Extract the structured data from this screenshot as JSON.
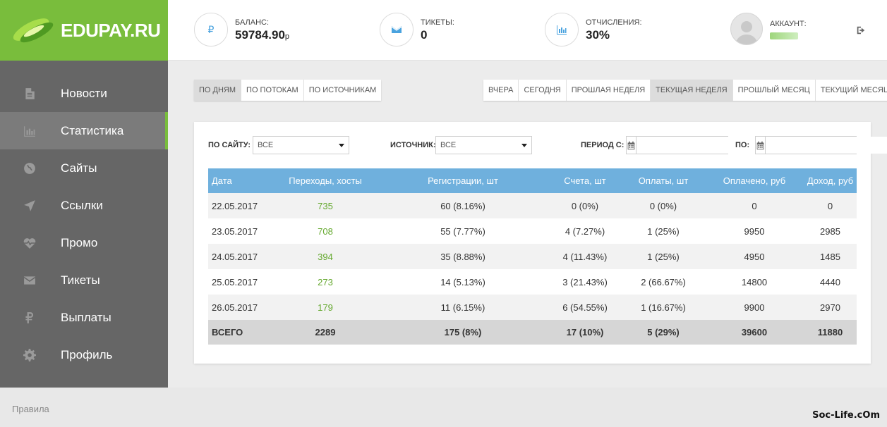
{
  "logo": {
    "text": "EDUPAY.RU"
  },
  "sidebar": {
    "items": [
      {
        "label": "Новости",
        "icon": "document-icon",
        "active": false
      },
      {
        "label": "Статистика",
        "icon": "bar-chart-icon",
        "active": true
      },
      {
        "label": "Сайты",
        "icon": "globe-icon",
        "active": false
      },
      {
        "label": "Ссылки",
        "icon": "location-arrow-icon",
        "active": false
      },
      {
        "label": "Промо",
        "icon": "heartbeat-icon",
        "active": false
      },
      {
        "label": "Тикеты",
        "icon": "envelope-icon",
        "active": false
      },
      {
        "label": "Выплаты",
        "icon": "ruble-icon",
        "active": false
      },
      {
        "label": "Профиль",
        "icon": "gear-icon",
        "active": false
      }
    ]
  },
  "header": {
    "balance": {
      "label": "БАЛАНС:",
      "value": "59784.90",
      "unit": "р"
    },
    "tickets": {
      "label": "ТИКЕТЫ:",
      "value": "0"
    },
    "deductions": {
      "label": "ОТЧИСЛЕНИЯ:",
      "value": "30%"
    },
    "account": {
      "label": "АККАУНТ:"
    }
  },
  "group_tabs": [
    {
      "label": "ПО ДНЯМ",
      "active": true
    },
    {
      "label": "ПО ПОТОКАМ",
      "active": false
    },
    {
      "label": "ПО ИСТОЧНИКАМ",
      "active": false
    }
  ],
  "period_tabs": [
    {
      "label": "ВЧЕРА",
      "active": false
    },
    {
      "label": "СЕГОДНЯ",
      "active": false
    },
    {
      "label": "ПРОШЛАЯ НЕДЕЛЯ",
      "active": false
    },
    {
      "label": "ТЕКУЩАЯ НЕДЕЛЯ",
      "active": true
    },
    {
      "label": "ПРОШЛЫЙ МЕСЯЦ",
      "active": false
    },
    {
      "label": "ТЕКУЩИЙ МЕСЯЦ",
      "active": false
    }
  ],
  "filters": {
    "site_label": "ПО САЙТУ:",
    "site_value": "ВСЕ",
    "source_label": "ИСТОЧНИК:",
    "source_value": "ВСЕ",
    "period_from_label": "ПЕРИОД С:",
    "period_to_label": "ПО:"
  },
  "table": {
    "columns": [
      "Дата",
      "Переходы, хосты",
      "Регистрации, шт",
      "Счета, шт",
      "Оплаты, шт",
      "Оплачено, руб",
      "Доход, руб"
    ],
    "rows": [
      [
        "22.05.2017",
        "735",
        "60 (8.16%)",
        "0 (0%)",
        "0 (0%)",
        "0",
        "0"
      ],
      [
        "23.05.2017",
        "708",
        "55 (7.77%)",
        "4 (7.27%)",
        "1 (25%)",
        "9950",
        "2985"
      ],
      [
        "24.05.2017",
        "394",
        "35 (8.88%)",
        "4 (11.43%)",
        "1 (25%)",
        "4950",
        "1485"
      ],
      [
        "25.05.2017",
        "273",
        "14 (5.13%)",
        "3 (21.43%)",
        "2 (66.67%)",
        "14800",
        "4440"
      ],
      [
        "26.05.2017",
        "179",
        "11 (6.15%)",
        "6 (54.55%)",
        "1 (16.67%)",
        "9900",
        "2970"
      ]
    ],
    "total": [
      "ВСЕГО",
      "2289",
      "175 (8%)",
      "17 (10%)",
      "5 (29%)",
      "39600",
      "11880"
    ]
  },
  "footer": {
    "link": "Правила"
  },
  "watermark": "Soc-Life.cOm"
}
